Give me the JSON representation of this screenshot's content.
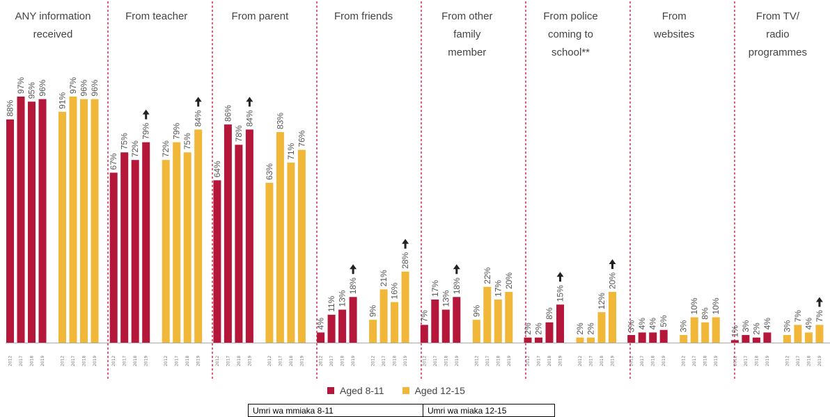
{
  "colors": {
    "aged_8_11": "#b5173a",
    "aged_12_15": "#f0b739",
    "divider": "#d62a52",
    "arrow": "#222222",
    "axis": "#aaaaaa"
  },
  "legend": {
    "series1": "Aged 8-11",
    "series2": "Aged 12-15"
  },
  "translation": {
    "series1": "Umri wa mmiaka 8-11",
    "series2": "Umri wa miaka 12-15"
  },
  "chart_data": {
    "type": "bar",
    "years": [
      "2012",
      "2017",
      "2018",
      "2019"
    ],
    "ylim": [
      0,
      100
    ],
    "panels": [
      {
        "title": [
          "ANY information",
          "received"
        ],
        "series": [
          {
            "name": "Aged 8-11",
            "values": [
              88,
              97,
              95,
              96
            ],
            "labels": [
              "88%",
              "97%",
              "95%",
              "96%"
            ],
            "arrow": false
          },
          {
            "name": "Aged 12-15",
            "values": [
              91,
              97,
              96,
              96
            ],
            "labels": [
              "91%",
              "97%",
              "96%",
              "96%"
            ],
            "arrow": false
          }
        ]
      },
      {
        "title": [
          "From teacher"
        ],
        "series": [
          {
            "name": "Aged 8-11",
            "values": [
              67,
              75,
              72,
              79
            ],
            "labels": [
              "67%",
              "75%",
              "72%",
              "79%"
            ],
            "arrow": true
          },
          {
            "name": "Aged 12-15",
            "values": [
              72,
              79,
              75,
              84
            ],
            "labels": [
              "72%",
              "79%",
              "75%",
              "84%"
            ],
            "arrow": true
          }
        ]
      },
      {
        "title": [
          "From parent"
        ],
        "series": [
          {
            "name": "Aged 8-11",
            "values": [
              64,
              86,
              78,
              84
            ],
            "labels": [
              "64%",
              "86%",
              "78%",
              "84%"
            ],
            "arrow": true
          },
          {
            "name": "Aged 12-15",
            "values": [
              63,
              83,
              71,
              76
            ],
            "labels": [
              "63%",
              "83%",
              "71%",
              "76%"
            ],
            "arrow": false
          }
        ]
      },
      {
        "title": [
          "From friends"
        ],
        "series": [
          {
            "name": "Aged 8-11",
            "values": [
              4,
              11,
              13,
              18
            ],
            "labels": [
              "4%",
              "11%",
              "13%",
              "18%"
            ],
            "arrow": true
          },
          {
            "name": "Aged 12-15",
            "values": [
              9,
              21,
              16,
              28
            ],
            "labels": [
              "9%",
              "21%",
              "16%",
              "28%"
            ],
            "arrow": true
          }
        ]
      },
      {
        "title": [
          "From other",
          "family",
          "member"
        ],
        "series": [
          {
            "name": "Aged 8-11",
            "values": [
              7,
              17,
              13,
              18
            ],
            "labels": [
              "7%",
              "17%",
              "13%",
              "18%"
            ],
            "arrow": true
          },
          {
            "name": "Aged 12-15",
            "values": [
              9,
              22,
              17,
              20
            ],
            "labels": [
              "9%",
              "22%",
              "17%",
              "20%"
            ],
            "arrow": false
          }
        ]
      },
      {
        "title": [
          "From police",
          "coming to",
          "school**"
        ],
        "series": [
          {
            "name": "Aged 8-11",
            "values": [
              2,
              2,
              8,
              15
            ],
            "labels": [
              "2%",
              "2%",
              "8%",
              "15%"
            ],
            "arrow": true
          },
          {
            "name": "Aged 12-15",
            "values": [
              2,
              2,
              12,
              20
            ],
            "labels": [
              "2%",
              "2%",
              "12%",
              "20%"
            ],
            "arrow": true
          }
        ]
      },
      {
        "title": [
          "From",
          "websites"
        ],
        "series": [
          {
            "name": "Aged 8-11",
            "values": [
              3,
              4,
              4,
              5
            ],
            "labels": [
              "3%",
              "4%",
              "4%",
              "5%"
            ],
            "arrow": false
          },
          {
            "name": "Aged 12-15",
            "values": [
              3,
              10,
              8,
              10
            ],
            "labels": [
              "3%",
              "10%",
              "8%",
              "10%"
            ],
            "arrow": false
          }
        ]
      },
      {
        "title": [
          "From TV/",
          "radio",
          "programmes"
        ],
        "series": [
          {
            "name": "Aged 8-11",
            "values": [
              1,
              3,
              2,
              4
            ],
            "labels": [
              "1%",
              "3%",
              "2%",
              "4%"
            ],
            "arrow": false
          },
          {
            "name": "Aged 12-15",
            "values": [
              3,
              7,
              4,
              7
            ],
            "labels": [
              "3%",
              "7%",
              "4%",
              "7%"
            ],
            "arrow": true
          }
        ]
      }
    ]
  }
}
